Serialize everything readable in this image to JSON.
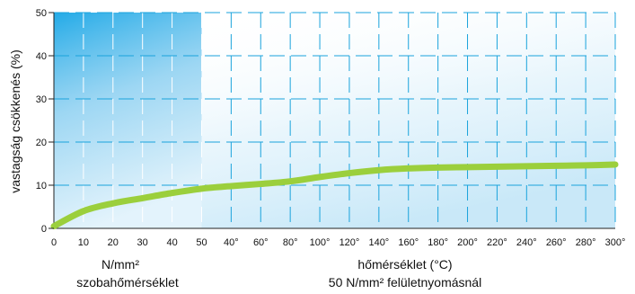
{
  "chart_data": {
    "type": "line",
    "ylabel": "vastagság csökkenés (%)",
    "ylim": [
      0,
      50
    ],
    "y_ticks": [
      "0",
      "10",
      "20",
      "30",
      "40",
      "50"
    ],
    "x_ticks": [
      "0",
      "10",
      "20",
      "30",
      "40",
      "50",
      "40°",
      "60°",
      "80°",
      "100°",
      "120°",
      "140°",
      "160°",
      "180°",
      "200°",
      "220°",
      "240°",
      "260°",
      "280°",
      "300°"
    ],
    "x_sections": [
      {
        "label_line1": "N/mm²",
        "label_line2": "szobahőmérséklet",
        "range": [
          0,
          50
        ],
        "unit": "N/mm²"
      },
      {
        "label_line1": "hőmérséklet (°C)",
        "label_line2": "50 N/mm² felületnyomásnál",
        "range": [
          40,
          300
        ],
        "unit": "°C"
      }
    ],
    "grid": true,
    "series": [
      {
        "color": "#9bcf3c",
        "points": [
          {
            "x": "0",
            "y": 0.5
          },
          {
            "x": "10",
            "y": 4
          },
          {
            "x": "20",
            "y": 5.8
          },
          {
            "x": "30",
            "y": 7
          },
          {
            "x": "40",
            "y": 8.2
          },
          {
            "x": "50",
            "y": 9.2
          },
          {
            "x": "40°",
            "y": 9.8
          },
          {
            "x": "60°",
            "y": 10.3
          },
          {
            "x": "80°",
            "y": 10.9
          },
          {
            "x": "100°",
            "y": 11.9
          },
          {
            "x": "120°",
            "y": 12.8
          },
          {
            "x": "140°",
            "y": 13.5
          },
          {
            "x": "160°",
            "y": 13.9
          },
          {
            "x": "180°",
            "y": 14.1
          },
          {
            "x": "200°",
            "y": 14.2
          },
          {
            "x": "220°",
            "y": 14.3
          },
          {
            "x": "240°",
            "y": 14.4
          },
          {
            "x": "260°",
            "y": 14.5
          },
          {
            "x": "280°",
            "y": 14.6
          },
          {
            "x": "300°",
            "y": 14.8
          }
        ]
      }
    ],
    "colors": {
      "grid": "#1aa3dc",
      "fill_top": "#1fa8e6",
      "curve": "#9bcf3c"
    }
  }
}
